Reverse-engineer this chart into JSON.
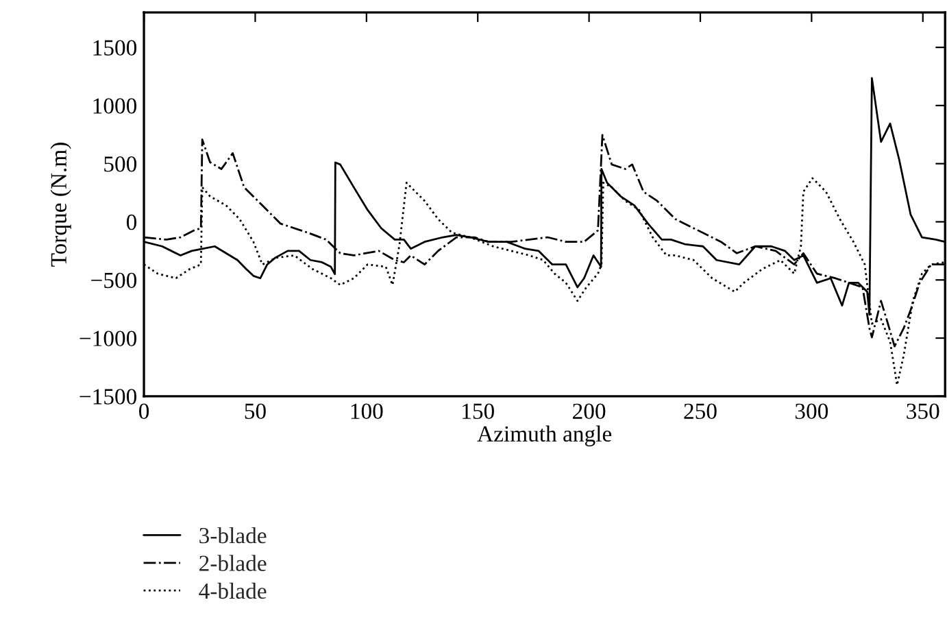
{
  "chart_data": {
    "type": "line",
    "xlabel": "Azimuth angle",
    "ylabel": "Torque (N.m)",
    "xlim": [
      0,
      360
    ],
    "ylim": [
      -1500,
      1800
    ],
    "xticks": [
      0,
      50,
      100,
      150,
      200,
      250,
      300,
      350
    ],
    "yticks": [
      -1500,
      -1000,
      -500,
      0,
      500,
      1000,
      1500
    ],
    "grid": false,
    "legend": "bottom left",
    "marker": "none",
    "series": [
      {
        "name": "3-blade",
        "color": "#000000",
        "line_style": "solid",
        "x": [
          0,
          8.2,
          16.4,
          21.5,
          26.6,
          31.8,
          36.9,
          42,
          46,
          49.2,
          52.3,
          55.4,
          59,
          64.6,
          69.7,
          74.8,
          80,
          84,
          85.8,
          86,
          88.2,
          94.3,
          100.5,
          106.6,
          112.7,
          116.8,
          119.9,
          126.1,
          134.3,
          140.4,
          146.6,
          154.8,
          163,
          171.2,
          177.3,
          183.5,
          189.6,
          194.8,
          197.8,
          202,
          205.4,
          205.6,
          208.1,
          214.2,
          220.4,
          226.5,
          232.7,
          236.8,
          243,
          251.2,
          257.3,
          267.5,
          274.7,
          281.9,
          288,
          292.2,
          296.3,
          302.4,
          308.6,
          313.7,
          316.8,
          320.9,
          325,
          326,
          327.1,
          331.2,
          335.3,
          339.4,
          344.5,
          349.6,
          355.8,
          359.9
        ],
        "values": [
          -172,
          -211,
          -289,
          -250,
          -231,
          -211,
          -270,
          -329,
          -407,
          -465,
          -485,
          -367,
          -309,
          -250,
          -250,
          -329,
          -348,
          -387,
          -450,
          510,
          493,
          297,
          102,
          -55,
          -153,
          -153,
          -231,
          -172,
          -133,
          -113,
          -133,
          -172,
          -172,
          -231,
          -250,
          -367,
          -367,
          -563,
          -485,
          -289,
          -387,
          454,
          336,
          219,
          141,
          -16,
          -153,
          -153,
          -192,
          -211,
          -329,
          -367,
          -211,
          -211,
          -250,
          -329,
          -289,
          -524,
          -485,
          -720,
          -524,
          -524,
          -602,
          -798,
          1236,
          688,
          845,
          532,
          63,
          -133,
          -153,
          -172
        ]
      },
      {
        "name": "2-blade",
        "color": "#000000",
        "line_style": "dashdot",
        "x": [
          0,
          10.2,
          16.4,
          22.5,
          25.6,
          26.2,
          29.7,
          34.8,
          39.9,
          45,
          53.2,
          61.4,
          73.7,
          81.9,
          85,
          88.2,
          94.3,
          105.5,
          112.7,
          116.8,
          119.9,
          126.1,
          132.2,
          140.4,
          148.6,
          154.8,
          165,
          173.2,
          181.4,
          189.6,
          197.8,
          204,
          206,
          210.2,
          216.3,
          219.4,
          224.5,
          230.6,
          238.8,
          247,
          259.3,
          266.4,
          274.7,
          283.9,
          292.2,
          296.3,
          302.4,
          310.6,
          316.8,
          322.9,
          326,
          327.1,
          331.2,
          334.3,
          337.3,
          341.4,
          344.5,
          348.6,
          353.7,
          359.9
        ],
        "values": [
          -133,
          -153,
          -133,
          -74,
          -55,
          708,
          512,
          454,
          590,
          297,
          141,
          -16,
          -94,
          -153,
          -211,
          -270,
          -289,
          -250,
          -329,
          -348,
          -289,
          -367,
          -250,
          -133,
          -133,
          -172,
          -172,
          -153,
          -133,
          -172,
          -172,
          -74,
          747,
          493,
          454,
          493,
          258,
          180,
          23,
          -55,
          -172,
          -270,
          -211,
          -250,
          -367,
          -270,
          -446,
          -485,
          -524,
          -563,
          -915,
          -993,
          -680,
          -876,
          -1071,
          -915,
          -759,
          -524,
          -367,
          -367
        ]
      },
      {
        "name": "4-blade",
        "color": "#000000",
        "line_style": "dotted",
        "x": [
          0,
          6.2,
          14.4,
          20.5,
          25.6,
          26.2,
          29.7,
          36.9,
          43,
          49.2,
          53.2,
          59.4,
          67.6,
          75.8,
          84,
          88.2,
          94.3,
          100.5,
          108.7,
          111.7,
          114.8,
          118,
          126.1,
          132.2,
          138.4,
          146.6,
          156.9,
          165,
          173.2,
          179.4,
          184.5,
          189.6,
          194.8,
          198.8,
          204,
          205.6,
          206.4,
          210.2,
          216.3,
          222.5,
          228.6,
          234.8,
          238.8,
          247,
          255.3,
          265.5,
          269.6,
          277.8,
          286,
          292.2,
          295.2,
          296.3,
          300.4,
          306.5,
          312.7,
          318.8,
          323.9,
          327.1,
          331.2,
          335.3,
          337.3,
          338.4,
          341.4,
          345.5,
          349.6,
          353.7,
          359.9
        ],
        "values": [
          -367,
          -446,
          -485,
          -407,
          -367,
          297,
          219,
          141,
          23,
          -172,
          -367,
          -309,
          -289,
          -407,
          -485,
          -543,
          -485,
          -367,
          -387,
          -543,
          -200,
          336,
          180,
          23,
          -94,
          -133,
          -211,
          -250,
          -289,
          -329,
          -446,
          -524,
          -680,
          -563,
          -446,
          -367,
          336,
          297,
          180,
          102,
          -133,
          -289,
          -289,
          -329,
          -485,
          -602,
          -524,
          -407,
          -329,
          -446,
          -211,
          258,
          375,
          258,
          23,
          -172,
          -367,
          -876,
          -837,
          -1032,
          -1267,
          -1404,
          -1150,
          -680,
          -446,
          -367,
          -348
        ]
      }
    ]
  }
}
